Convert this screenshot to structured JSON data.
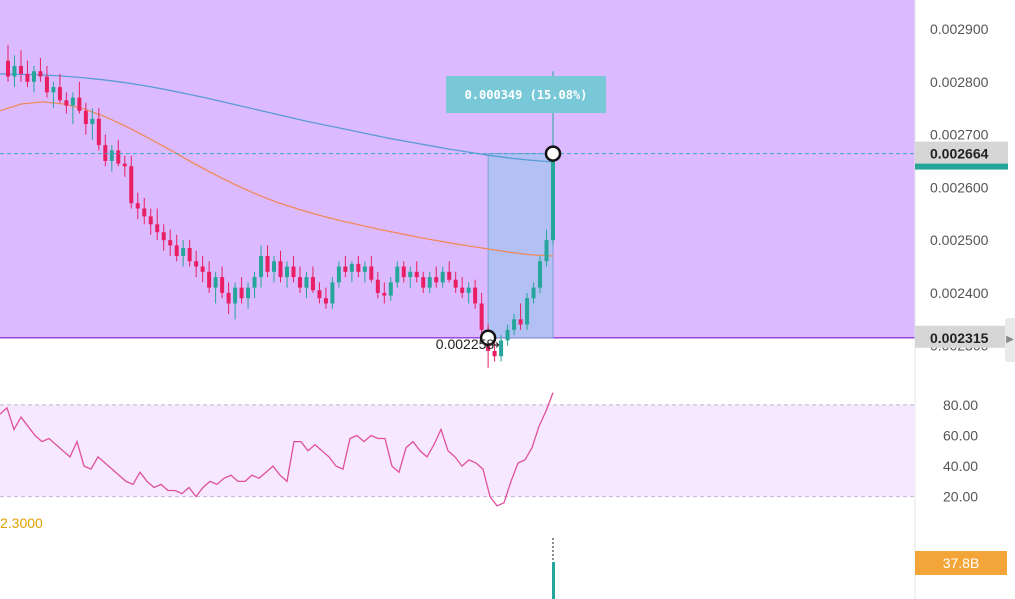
{
  "chart_data": {
    "type": "candlestick",
    "price_ticks": [
      "0.002800",
      "0.002700",
      "0.002600",
      "0.002500",
      "0.002400",
      "0.002300"
    ],
    "price_tick_values": [
      0.0028,
      0.0027,
      0.0026,
      0.0025,
      0.0024,
      0.0023
    ],
    "top_partial_tick": "0.002900",
    "price_range": [
      0.002235,
      0.002955
    ],
    "last_price_label": "0.002664",
    "last_price": 0.002664,
    "range_low_label": "0.002315",
    "range_low": 0.002315,
    "low_marker_label": "0.002258",
    "low_value": 0.002258,
    "measure_label": "0.000349 (15.08%)",
    "rsi_ticks": [
      "80.00",
      "60.00",
      "40.00",
      "20.00"
    ],
    "rsi_tick_values": [
      80,
      60,
      40,
      20
    ],
    "rsi_range": [
      8,
      93
    ],
    "rsi_upper_band": 80,
    "rsi_lower_band": 20,
    "partial_value_label": "2.3000",
    "volume_label": "37.8B",
    "colors": {
      "up": "#26a69a",
      "down": "#e91e63",
      "ma_fast": "#5b9bd5",
      "ma_slow": "#f08a5d",
      "zone_fill": "#dcbaff",
      "rsi_line": "#e0509a",
      "measure_box": "#78c8d8",
      "last_price_tag": "#26a69a"
    },
    "grid": false,
    "candles": [
      [
        0.00284,
        0.00287,
        0.0028,
        0.00281
      ],
      [
        0.00281,
        0.00285,
        0.00279,
        0.00283
      ],
      [
        0.00283,
        0.00286,
        0.0028,
        0.002815
      ],
      [
        0.002815,
        0.00284,
        0.00279,
        0.0028
      ],
      [
        0.0028,
        0.00283,
        0.00278,
        0.00282
      ],
      [
        0.00282,
        0.002845,
        0.0028,
        0.00281
      ],
      [
        0.00281,
        0.00283,
        0.00277,
        0.00278
      ],
      [
        0.00278,
        0.0028,
        0.00275,
        0.00279
      ],
      [
        0.00279,
        0.002815,
        0.00276,
        0.002765
      ],
      [
        0.002765,
        0.00278,
        0.00274,
        0.002755
      ],
      [
        0.002755,
        0.00278,
        0.00272,
        0.00277
      ],
      [
        0.00277,
        0.0028,
        0.00274,
        0.002745
      ],
      [
        0.002745,
        0.00276,
        0.0027,
        0.00272
      ],
      [
        0.00272,
        0.00275,
        0.00269,
        0.00273
      ],
      [
        0.00273,
        0.00275,
        0.00267,
        0.00268
      ],
      [
        0.00268,
        0.0027,
        0.00264,
        0.00265
      ],
      [
        0.00265,
        0.00268,
        0.00263,
        0.00267
      ],
      [
        0.00267,
        0.00269,
        0.00264,
        0.002645
      ],
      [
        0.002645,
        0.00266,
        0.00262,
        0.00264
      ],
      [
        0.00264,
        0.00266,
        0.00256,
        0.00257
      ],
      [
        0.00257,
        0.00259,
        0.00254,
        0.00256
      ],
      [
        0.00256,
        0.00258,
        0.00253,
        0.002545
      ],
      [
        0.002545,
        0.00256,
        0.00251,
        0.00253
      ],
      [
        0.00253,
        0.00256,
        0.0025,
        0.002515
      ],
      [
        0.002515,
        0.00253,
        0.00248,
        0.0025
      ],
      [
        0.0025,
        0.00252,
        0.00247,
        0.00249
      ],
      [
        0.00249,
        0.00251,
        0.00246,
        0.00247
      ],
      [
        0.00247,
        0.0025,
        0.00245,
        0.002485
      ],
      [
        0.002485,
        0.0025,
        0.00245,
        0.00246
      ],
      [
        0.00246,
        0.00248,
        0.00243,
        0.00245
      ],
      [
        0.00245,
        0.00247,
        0.00242,
        0.00244
      ],
      [
        0.00244,
        0.00246,
        0.0024,
        0.00241
      ],
      [
        0.00241,
        0.00244,
        0.00238,
        0.00243
      ],
      [
        0.00243,
        0.00245,
        0.00239,
        0.0024
      ],
      [
        0.0024,
        0.00242,
        0.00236,
        0.00238
      ],
      [
        0.00238,
        0.00242,
        0.00235,
        0.00241
      ],
      [
        0.00241,
        0.00243,
        0.00238,
        0.00239
      ],
      [
        0.00239,
        0.00242,
        0.00237,
        0.00241
      ],
      [
        0.00241,
        0.00244,
        0.00239,
        0.00243
      ],
      [
        0.00243,
        0.00249,
        0.00241,
        0.00247
      ],
      [
        0.00247,
        0.00249,
        0.00243,
        0.00244
      ],
      [
        0.00244,
        0.00247,
        0.00242,
        0.00246
      ],
      [
        0.00246,
        0.00248,
        0.00242,
        0.00243
      ],
      [
        0.00243,
        0.00246,
        0.00241,
        0.00245
      ],
      [
        0.00245,
        0.00247,
        0.00242,
        0.00243
      ],
      [
        0.00243,
        0.00245,
        0.0024,
        0.00241
      ],
      [
        0.00241,
        0.00244,
        0.00239,
        0.00243
      ],
      [
        0.00243,
        0.00245,
        0.0024,
        0.002405
      ],
      [
        0.002405,
        0.00242,
        0.00238,
        0.00239
      ],
      [
        0.00239,
        0.00241,
        0.00237,
        0.00238
      ],
      [
        0.00238,
        0.00243,
        0.00237,
        0.00242
      ],
      [
        0.00242,
        0.00246,
        0.00241,
        0.00245
      ],
      [
        0.00245,
        0.00247,
        0.00243,
        0.00244
      ],
      [
        0.00244,
        0.00246,
        0.00242,
        0.002455
      ],
      [
        0.002455,
        0.00247,
        0.00243,
        0.00244
      ],
      [
        0.00244,
        0.00246,
        0.00242,
        0.00245
      ],
      [
        0.00245,
        0.00247,
        0.00242,
        0.002425
      ],
      [
        0.002425,
        0.00244,
        0.00239,
        0.0024
      ],
      [
        0.0024,
        0.00242,
        0.00238,
        0.002395
      ],
      [
        0.002395,
        0.00243,
        0.002385,
        0.00242
      ],
      [
        0.00242,
        0.00246,
        0.00241,
        0.00245
      ],
      [
        0.00245,
        0.00246,
        0.00242,
        0.00243
      ],
      [
        0.00243,
        0.00245,
        0.00241,
        0.00244
      ],
      [
        0.00244,
        0.00246,
        0.00242,
        0.00243
      ],
      [
        0.00243,
        0.00244,
        0.0024,
        0.00241
      ],
      [
        0.00241,
        0.00244,
        0.0024,
        0.00243
      ],
      [
        0.00243,
        0.00245,
        0.00241,
        0.00242
      ],
      [
        0.00242,
        0.00245,
        0.00241,
        0.00244
      ],
      [
        0.00244,
        0.00246,
        0.00242,
        0.002425
      ],
      [
        0.002425,
        0.00244,
        0.0024,
        0.00241
      ],
      [
        0.00241,
        0.00243,
        0.00239,
        0.0024
      ],
      [
        0.0024,
        0.00242,
        0.00238,
        0.00241
      ],
      [
        0.00241,
        0.002425,
        0.00237,
        0.00238
      ],
      [
        0.00238,
        0.0024,
        0.00232,
        0.00233
      ],
      [
        0.00233,
        0.00234,
        0.002258,
        0.00229
      ],
      [
        0.00229,
        0.00231,
        0.00227,
        0.00228
      ],
      [
        0.00228,
        0.00232,
        0.00227,
        0.00231
      ],
      [
        0.00231,
        0.00234,
        0.0023,
        0.00233
      ],
      [
        0.00233,
        0.00236,
        0.00232,
        0.00235
      ],
      [
        0.00235,
        0.00238,
        0.00233,
        0.00234
      ],
      [
        0.00234,
        0.0024,
        0.00233,
        0.00239
      ],
      [
        0.00239,
        0.00242,
        0.00238,
        0.00241
      ],
      [
        0.00241,
        0.00247,
        0.0024,
        0.00246
      ],
      [
        0.00246,
        0.00252,
        0.00245,
        0.0025
      ],
      [
        0.0025,
        0.00282,
        0.00249,
        0.002664
      ]
    ],
    "ma_fast": [
      0.002815,
      0.002814,
      0.002813,
      0.002811,
      0.002808,
      0.002804,
      0.002799,
      0.002793,
      0.002786,
      0.002778,
      0.00277,
      0.002761,
      0.002752,
      0.002743,
      0.002734,
      0.002725,
      0.002717,
      0.002709,
      0.002701,
      0.002693,
      0.002686,
      0.002679,
      0.002672,
      0.002666,
      0.00266,
      0.002655,
      0.002651,
      0.002648
    ],
    "ma_slow": [
      0.002745,
      0.002758,
      0.002762,
      0.002758,
      0.002748,
      0.002733,
      0.002714,
      0.002693,
      0.002671,
      0.002648,
      0.002626,
      0.002606,
      0.002588,
      0.002572,
      0.002559,
      0.002547,
      0.002537,
      0.002528,
      0.002519,
      0.002511,
      0.002503,
      0.002496,
      0.002489,
      0.002483,
      0.002477,
      0.002472,
      0.00247
    ],
    "rsi": [
      74,
      78,
      64,
      72,
      66,
      60,
      56,
      58,
      54,
      50,
      46,
      56,
      40,
      38,
      46,
      42,
      38,
      34,
      30,
      28,
      36,
      30,
      26,
      28,
      24,
      24,
      22,
      26,
      20,
      26,
      30,
      28,
      32,
      34,
      30,
      30,
      34,
      32,
      36,
      40,
      34,
      30,
      56,
      56,
      50,
      54,
      50,
      46,
      40,
      38,
      58,
      60,
      56,
      60,
      58,
      58,
      40,
      36,
      52,
      56,
      50,
      46,
      54,
      64,
      50,
      46,
      40,
      44,
      42,
      38,
      20,
      14,
      16,
      30,
      42,
      44,
      52,
      66,
      76,
      88
    ]
  }
}
